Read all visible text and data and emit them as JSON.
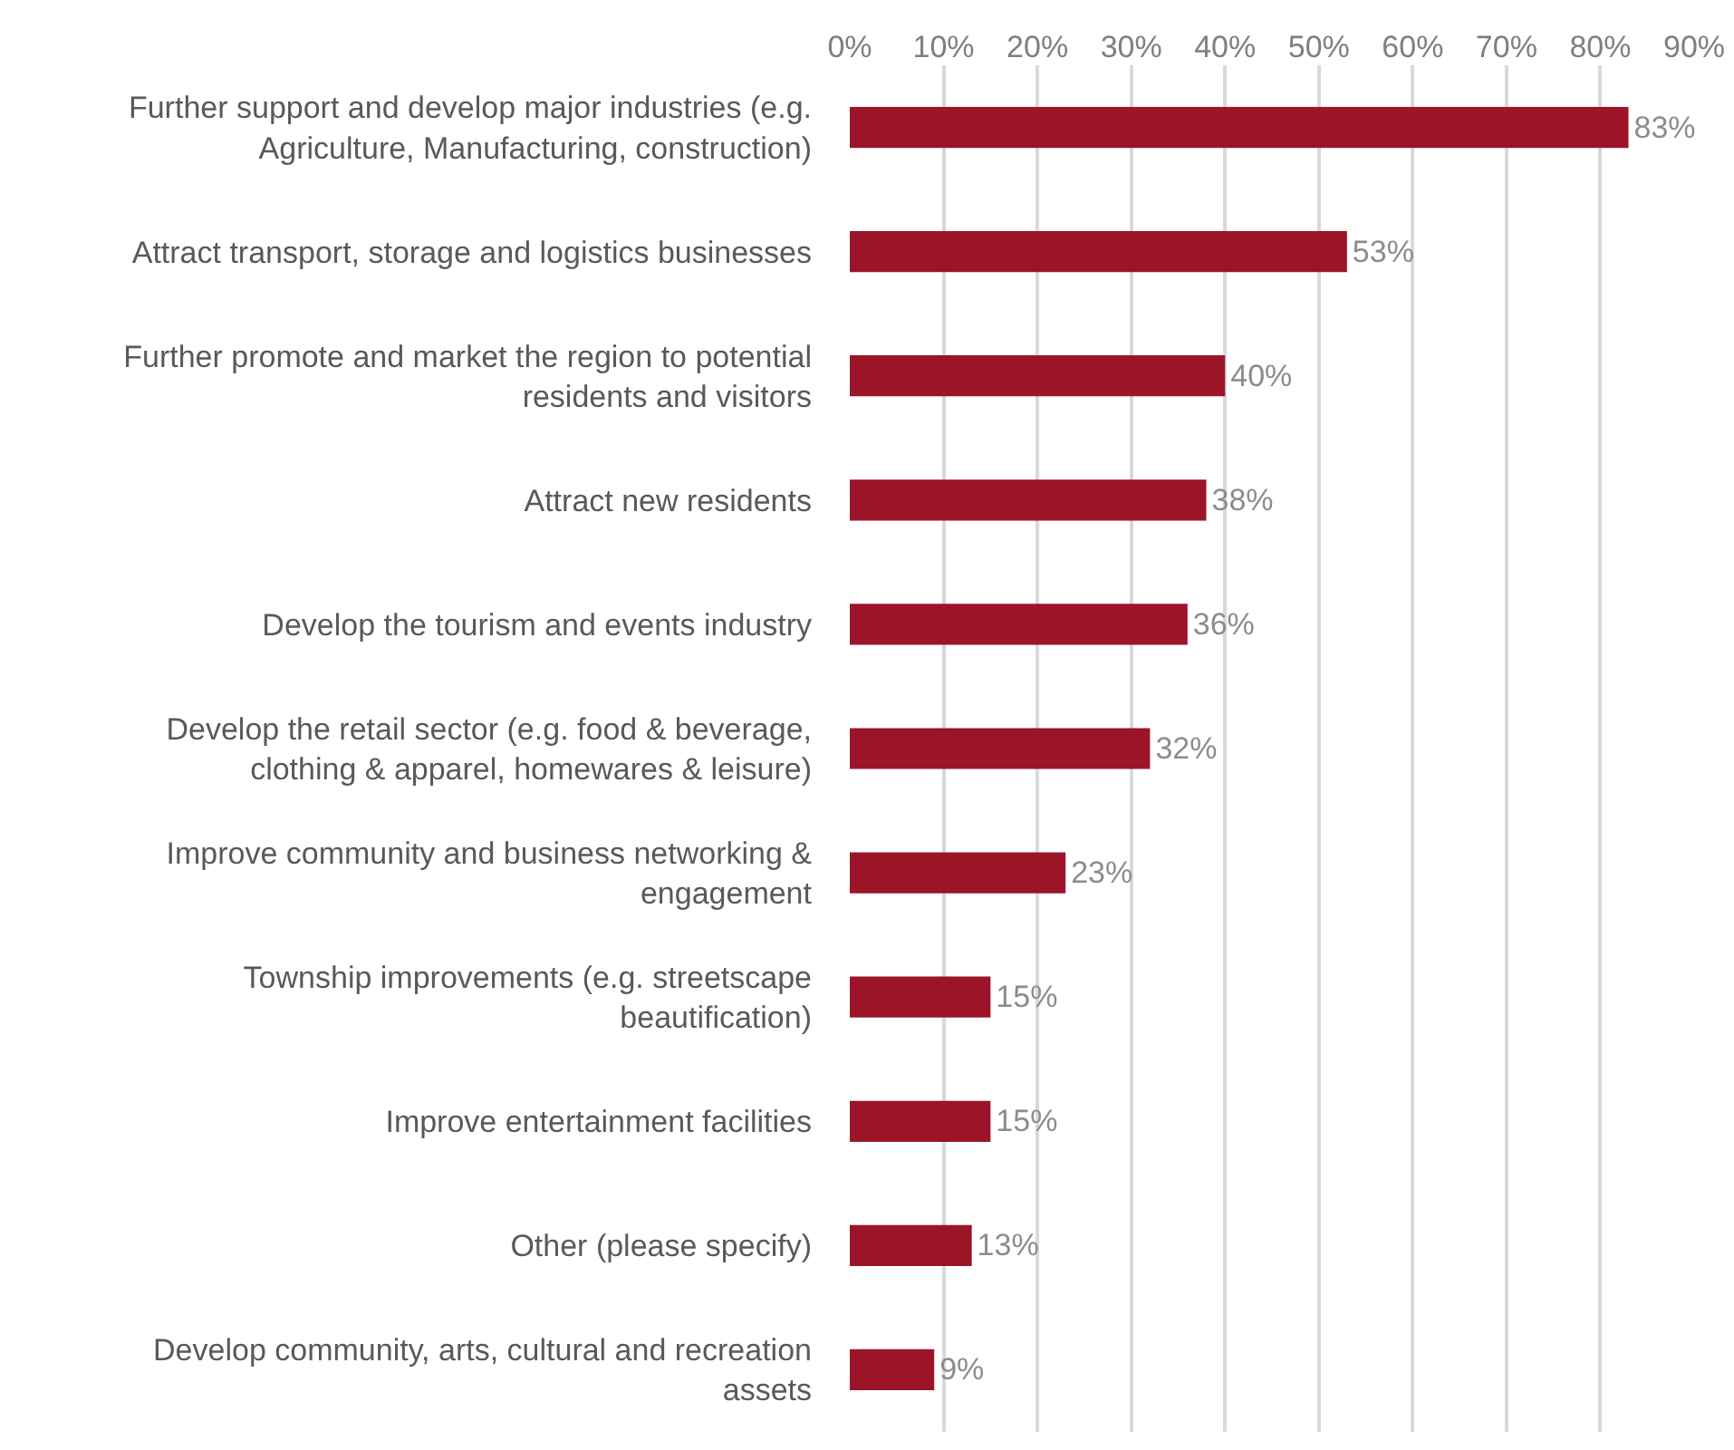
{
  "chart_data": {
    "type": "bar",
    "orientation": "horizontal",
    "categories": [
      "Further support and develop major industries (e.g.\nAgriculture, Manufacturing, construction)",
      "Attract transport, storage and logistics businesses",
      "Further promote and market the region to potential\nresidents and visitors",
      "Attract new residents",
      "Develop the tourism and events industry",
      "Develop the retail sector (e.g. food & beverage,\nclothing & apparel, homewares & leisure)",
      "Improve community and business networking &\nengagement",
      "Township improvements (e.g. streetscape\nbeautification)",
      "Improve entertainment facilities",
      "Other (please specify)",
      "Develop community, arts, cultural and recreation\nassets"
    ],
    "values": [
      83,
      53,
      40,
      38,
      36,
      32,
      23,
      15,
      15,
      13,
      9
    ],
    "value_labels": [
      "83%",
      "53%",
      "40%",
      "38%",
      "36%",
      "32%",
      "23%",
      "15%",
      "15%",
      "13%",
      "9%"
    ],
    "color": "#9b1428",
    "xlim": [
      0,
      90
    ],
    "xticks": [
      {
        "value": 0,
        "label": "0%"
      },
      {
        "value": 10,
        "label": "10%"
      },
      {
        "value": 20,
        "label": "20%"
      },
      {
        "value": 30,
        "label": "30%"
      },
      {
        "value": 40,
        "label": "40%"
      },
      {
        "value": 50,
        "label": "50%"
      },
      {
        "value": 60,
        "label": "60%"
      },
      {
        "value": 70,
        "label": "70%"
      },
      {
        "value": 80,
        "label": "80%"
      },
      {
        "value": 90,
        "label": "90%"
      }
    ],
    "grid": "x"
  }
}
